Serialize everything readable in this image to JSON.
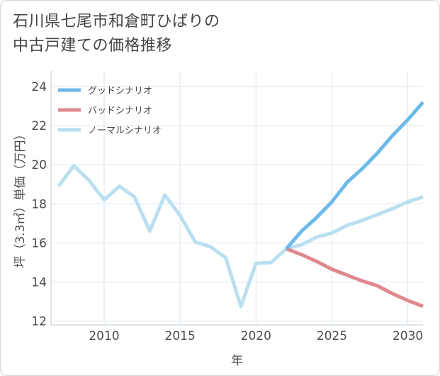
{
  "title": "石川県七尾市和倉町ひばりの\n中古戸建ての価格推移",
  "chart_data": {
    "type": "line",
    "xlabel": "年",
    "ylabel": "坪（3.3㎡）単価（万円）",
    "xlim": [
      2006.5,
      2031
    ],
    "ylim": [
      11.8,
      24.8
    ],
    "xticks": [
      2010,
      2015,
      2020,
      2025,
      2030
    ],
    "yticks": [
      12,
      14,
      16,
      18,
      20,
      22,
      24
    ],
    "grid": true,
    "legend_position": "top-left",
    "series": [
      {
        "name": "グッドシナリオ",
        "color": "#6db9ea",
        "x": [
          2022,
          2023,
          2024,
          2025,
          2026,
          2027,
          2028,
          2029,
          2030,
          2031
        ],
        "y": [
          15.7,
          16.6,
          17.3,
          18.1,
          19.1,
          19.8,
          20.6,
          21.5,
          22.3,
          23.2
        ]
      },
      {
        "name": "バッドシナリオ",
        "color": "#e0878f",
        "x": [
          2022,
          2023,
          2024,
          2025,
          2026,
          2027,
          2028,
          2029,
          2030,
          2031
        ],
        "y": [
          15.7,
          15.4,
          15.05,
          14.65,
          14.35,
          14.05,
          13.8,
          13.4,
          13.05,
          12.75
        ]
      },
      {
        "name": "ノーマルシナリオ",
        "color": "#b9dff0",
        "x": [
          2007,
          2008,
          2009,
          2010,
          2011,
          2012,
          2013,
          2014,
          2015,
          2016,
          2017,
          2018,
          2019,
          2020,
          2021,
          2022,
          2023,
          2024,
          2025,
          2026,
          2027,
          2028,
          2029,
          2030,
          2031
        ],
        "y": [
          18.9,
          19.95,
          19.2,
          18.2,
          18.9,
          18.35,
          16.6,
          18.45,
          17.4,
          16.05,
          15.8,
          15.25,
          12.75,
          14.95,
          15.0,
          15.7,
          15.9,
          16.3,
          16.5,
          16.9,
          17.15,
          17.45,
          17.75,
          18.1,
          18.35
        ]
      }
    ]
  }
}
